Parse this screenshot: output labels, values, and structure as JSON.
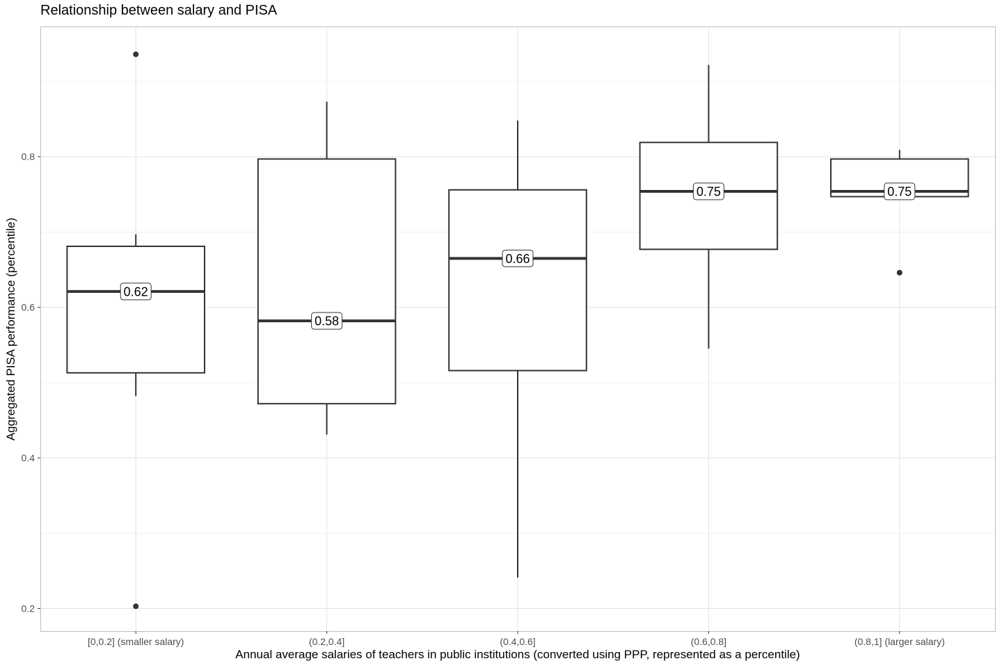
{
  "chart_data": {
    "type": "box",
    "title": "Relationship between salary and PISA",
    "xlabel": "Annual average salaries of teachers in public institutions (converted using PPP, represented as a percentile)",
    "ylabel": "Aggregated PISA performance (percentile)",
    "ylim": [
      0.17,
      0.973
    ],
    "yticks": [
      0.2,
      0.4,
      0.6,
      0.8
    ],
    "ytick_labels": [
      "0.2",
      "0.4",
      "0.6",
      "0.8"
    ],
    "grid": true,
    "categories": [
      "[0,0.2] (smaller salary)",
      "(0.2,0.4]",
      "(0.4,0.6]",
      "(0.6,0.8]",
      "(0.8,1] (larger salary)"
    ],
    "boxes": [
      {
        "category": "[0,0.2] (smaller salary)",
        "whisker_low": 0.482,
        "q1": 0.513,
        "median": 0.621,
        "q3": 0.681,
        "whisker_high": 0.697,
        "outliers": [
          0.936,
          0.203
        ],
        "median_label": "0.62"
      },
      {
        "category": "(0.2,0.4]",
        "whisker_low": 0.431,
        "q1": 0.472,
        "median": 0.582,
        "q3": 0.797,
        "whisker_high": 0.873,
        "outliers": [],
        "median_label": "0.58"
      },
      {
        "category": "(0.4,0.6]",
        "whisker_low": 0.241,
        "q1": 0.516,
        "median": 0.665,
        "q3": 0.756,
        "whisker_high": 0.848,
        "outliers": [],
        "median_label": "0.66"
      },
      {
        "category": "(0.6,0.8]",
        "whisker_low": 0.545,
        "q1": 0.677,
        "median": 0.754,
        "q3": 0.819,
        "whisker_high": 0.922,
        "outliers": [],
        "median_label": "0.75"
      },
      {
        "category": "(0.8,1] (larger salary)",
        "whisker_low": 0.747,
        "q1": 0.747,
        "median": 0.754,
        "q3": 0.797,
        "whisker_high": 0.809,
        "outliers": [
          0.646
        ],
        "median_label": "0.75"
      }
    ]
  }
}
